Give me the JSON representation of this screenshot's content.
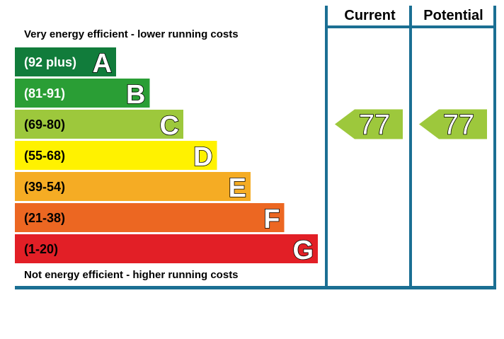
{
  "chart_data": {
    "type": "bar",
    "title": "",
    "top_caption": "Very energy efficient - lower running costs",
    "bottom_caption": "Not energy efficient - higher running costs",
    "columns": [
      "Current",
      "Potential"
    ],
    "bands": [
      {
        "letter": "A",
        "range": "(92 plus)",
        "min": 92,
        "max": null,
        "color": "#117c3b"
      },
      {
        "letter": "B",
        "range": "(81-91)",
        "min": 81,
        "max": 91,
        "color": "#2a9e35"
      },
      {
        "letter": "C",
        "range": "(69-80)",
        "min": 69,
        "max": 80,
        "color": "#9dc83c"
      },
      {
        "letter": "D",
        "range": "(55-68)",
        "min": 55,
        "max": 68,
        "color": "#fff200"
      },
      {
        "letter": "E",
        "range": "(39-54)",
        "min": 39,
        "max": 54,
        "color": "#f5ac24"
      },
      {
        "letter": "F",
        "range": "(21-38)",
        "min": 21,
        "max": 38,
        "color": "#ec6722"
      },
      {
        "letter": "G",
        "range": "(1-20)",
        "min": 1,
        "max": 20,
        "color": "#e21f26"
      }
    ],
    "ratings": [
      {
        "column": "Current",
        "value": 77,
        "label": "77",
        "band": "C"
      },
      {
        "column": "Potential",
        "value": 77,
        "label": "77",
        "band": "C"
      }
    ],
    "frame_color": "#1b6f93"
  }
}
